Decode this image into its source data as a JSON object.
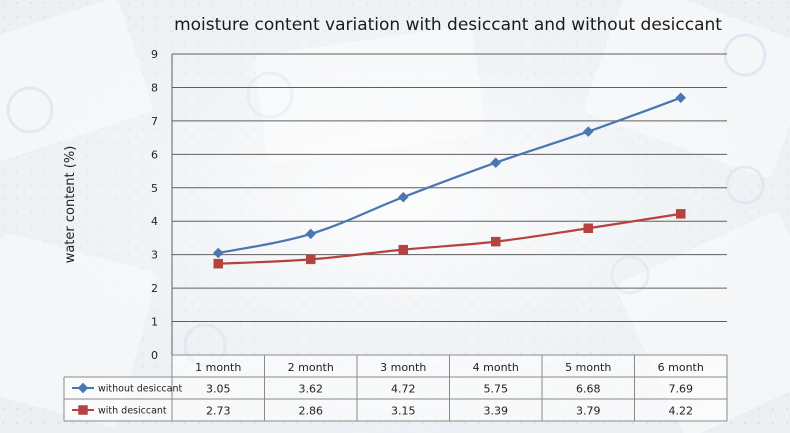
{
  "colors": {
    "background": "#eef1f4",
    "gridline": "#5f5f5f",
    "table_border": "#8a8a8a",
    "series_without": "#4a76b2",
    "series_with": "#b5423e"
  },
  "chart_data": {
    "type": "line",
    "title": "moisture content variation with desiccant and without desiccant",
    "xlabel": "",
    "ylabel": "water content (%)",
    "ylim": [
      0,
      9
    ],
    "yticks": [
      "0",
      "1",
      "2",
      "3",
      "4",
      "5",
      "6",
      "7",
      "8",
      "9"
    ],
    "grid": true,
    "legend": "data-table-left",
    "categories": [
      "1 month",
      "2 month",
      "3 month",
      "4 month",
      "5 month",
      "6 month"
    ],
    "series": [
      {
        "name": "without desiccant",
        "marker": "diamond",
        "color": "#4a76b2",
        "values": [
          3.05,
          3.62,
          4.72,
          5.75,
          6.68,
          7.69
        ],
        "labels": [
          "3.05",
          "3.62",
          "4.72",
          "5.75",
          "6.68",
          "7.69"
        ]
      },
      {
        "name": "with desiccant",
        "marker": "square",
        "color": "#b5423e",
        "values": [
          2.73,
          2.86,
          3.15,
          3.39,
          3.79,
          4.22
        ],
        "labels": [
          "2.73",
          "2.86",
          "3.15",
          "3.39",
          "3.79",
          "4.22"
        ]
      }
    ]
  }
}
